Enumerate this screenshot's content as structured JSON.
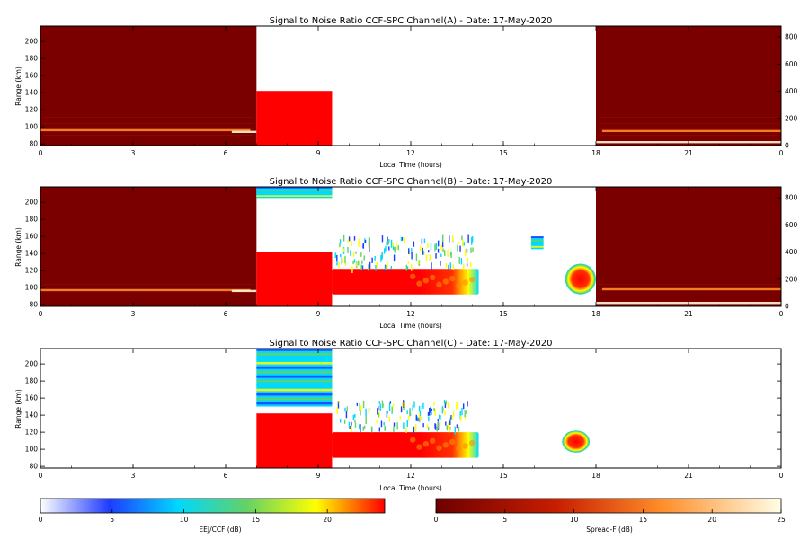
{
  "figure": {
    "x_tick_labels": [
      "0",
      "3",
      "6",
      "9",
      "12",
      "15",
      "18",
      "21",
      "0"
    ],
    "y_tick_labels": [
      "80",
      "100",
      "120",
      "140",
      "160",
      "180",
      "200"
    ],
    "spread_tick_labels": [
      "0",
      "200",
      "400",
      "600",
      "800"
    ]
  },
  "colors": {
    "ccf_red": "#ff0000",
    "ccf_yellow": "#ffff00",
    "ccf_green": "#64d264",
    "ccf_cyan": "#00d8ff",
    "ccf_blue": "#1e3cff",
    "spread_background": "#7a0000",
    "spread_bright": "#ff8c28",
    "spread_white": "#fff6dc"
  },
  "chart_data": [
    {
      "type": "heatmap",
      "title": "Signal to Noise Ratio CCF-SPC Channel(A) - Date: 17-May-2020",
      "xlabel": "Local Time (hours)",
      "ylabel": "Range (km)",
      "xlim": [
        0,
        24
      ],
      "ylim": [
        78,
        218
      ],
      "xticks": [
        0,
        3,
        6,
        9,
        12,
        15,
        18,
        21,
        24
      ],
      "yticks": [
        80,
        100,
        120,
        140,
        160,
        180,
        200
      ],
      "right_axis": {
        "ylim": [
          0,
          880
        ],
        "ticks": [
          0,
          200,
          400,
          600,
          800
        ]
      },
      "spread_f_blocks": [
        {
          "x": [
            0,
            7
          ],
          "y": [
            78,
            218
          ]
        },
        {
          "x": [
            18,
            24
          ],
          "y": [
            78,
            218
          ]
        }
      ],
      "spread_f_layers": [
        {
          "x": [
            0,
            6.8
          ],
          "range_km": 96,
          "level": "bright"
        },
        {
          "x": [
            6.2,
            7
          ],
          "range_km": 94,
          "level": "white"
        },
        {
          "x": [
            18,
            24
          ],
          "range_km": 82,
          "level": "white"
        },
        {
          "x": [
            18.2,
            24
          ],
          "range_km": 95,
          "level": "bright"
        }
      ],
      "ccf_regions": [
        {
          "x": [
            7,
            9.45
          ],
          "y": [
            78,
            142
          ],
          "snr_db": 24
        }
      ]
    },
    {
      "type": "heatmap",
      "title": "Signal to Noise Ratio CCF-SPC Channel(B) - Date: 17-May-2020",
      "xlabel": "Local Time (hours)",
      "ylabel": "Range (km)",
      "xlim": [
        0,
        24
      ],
      "ylim": [
        78,
        218
      ],
      "xticks": [
        0,
        3,
        6,
        9,
        12,
        15,
        18,
        21,
        24
      ],
      "yticks": [
        80,
        100,
        120,
        140,
        160,
        180,
        200
      ],
      "right_axis": {
        "ylim": [
          0,
          880
        ],
        "ticks": [
          0,
          200,
          400,
          600,
          800
        ]
      },
      "spread_f_blocks": [
        {
          "x": [
            0,
            7
          ],
          "y": [
            78,
            218
          ]
        },
        {
          "x": [
            18,
            24
          ],
          "y": [
            78,
            218
          ]
        }
      ],
      "spread_f_layers": [
        {
          "x": [
            0,
            6.8
          ],
          "range_km": 97,
          "level": "bright"
        },
        {
          "x": [
            6.2,
            7
          ],
          "range_km": 96,
          "level": "white"
        },
        {
          "x": [
            18,
            24
          ],
          "range_km": 82,
          "level": "white"
        },
        {
          "x": [
            18.2,
            24
          ],
          "range_km": 98,
          "level": "bright"
        }
      ],
      "ccf_regions": [
        {
          "x": [
            7,
            9.45
          ],
          "y": [
            78,
            142
          ],
          "snr_db": 24
        },
        {
          "x": [
            7,
            9.45
          ],
          "y": [
            205,
            218
          ],
          "snr_db": 12
        },
        {
          "x": [
            9.45,
            14.2
          ],
          "y": [
            92,
            122
          ],
          "snr_db": 24
        },
        {
          "x": [
            17,
            18
          ],
          "y": [
            92,
            128
          ],
          "snr_db": 24
        },
        {
          "x": [
            15.9,
            16.3
          ],
          "y": [
            145,
            160
          ],
          "snr_db": 10
        }
      ],
      "ccf_scatter_band": {
        "x": [
          9.5,
          14
        ],
        "y": [
          125,
          162
        ]
      }
    },
    {
      "type": "heatmap",
      "title": "Signal to Noise Ratio CCF-SPC Channel(C) - Date: 17-May-2020",
      "xlabel": "Local Time (hours)",
      "ylabel": "Range (km)",
      "xlim": [
        0,
        24
      ],
      "ylim": [
        78,
        218
      ],
      "xticks": [
        0,
        3,
        6,
        9,
        12,
        15,
        18,
        21,
        24
      ],
      "yticks": [
        80,
        100,
        120,
        140,
        160,
        180,
        200
      ],
      "ccf_regions": [
        {
          "x": [
            7,
            9.45
          ],
          "y": [
            78,
            142
          ],
          "snr_db": 24
        },
        {
          "x": [
            7,
            9.45
          ],
          "y": [
            150,
            218
          ],
          "snr_db": 8
        },
        {
          "x": [
            9.45,
            14.2
          ],
          "y": [
            90,
            120
          ],
          "snr_db": 24
        },
        {
          "x": [
            16.9,
            17.8
          ],
          "y": [
            96,
            122
          ],
          "snr_db": 24
        }
      ],
      "ccf_scatter_band": {
        "x": [
          9.5,
          14
        ],
        "y": [
          125,
          158
        ]
      }
    }
  ],
  "colorbars": [
    {
      "label": "EEJ/CCF (dB)",
      "ticks": [
        "0",
        "5",
        "10",
        "15",
        "20"
      ],
      "range": [
        0,
        24
      ],
      "colors": [
        "#ffffff",
        "#1e3cff",
        "#00d8ff",
        "#64d264",
        "#ffff00",
        "#ff0000"
      ]
    },
    {
      "label": "Spread-F (dB)",
      "ticks": [
        "0",
        "5",
        "10",
        "15",
        "20",
        "25"
      ],
      "range": [
        0,
        25
      ],
      "colors": [
        "#6e0000",
        "#c81e00",
        "#ff8c28",
        "#ffffe6"
      ]
    }
  ]
}
